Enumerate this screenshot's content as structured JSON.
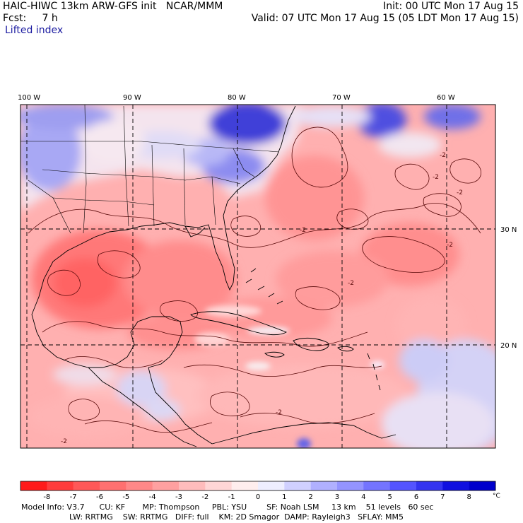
{
  "header": {
    "line1_left": "HAIC-HIWC 13km ARW-GFS init   NCAR/MMM",
    "line1_right": "Init: 00 UTC Mon 17 Aug 15",
    "line2_left": "Fcst:     7 h",
    "line2_right": "Valid: 07 UTC Mon 17 Aug 15 (05 LDT Mon 17 Aug 15)",
    "field": "Lifted index"
  },
  "map": {
    "lon_labels": [
      "100 W",
      "90 W",
      "80 W",
      "70 W",
      "60 W"
    ],
    "lat_labels": [
      "30 N",
      "20 N"
    ],
    "contour_label": "-2"
  },
  "colorbar": {
    "levels": [
      "-8",
      "-7",
      "-6",
      "-5",
      "-4",
      "-3",
      "-2",
      "-1",
      "0",
      "1",
      "2",
      "3",
      "4",
      "5",
      "6",
      "7",
      "8"
    ],
    "unit": "°C",
    "colors": [
      "#ff1a1a",
      "#ff3c3c",
      "#ff5858",
      "#ff7070",
      "#ff8888",
      "#ffa0a0",
      "#ffbcbc",
      "#ffd6d6",
      "#ffeeee",
      "#eeeeff",
      "#d0d0ff",
      "#b0b0ff",
      "#9494ff",
      "#7474ff",
      "#5454ff",
      "#3434f0",
      "#1010e0",
      "#0000cc"
    ]
  },
  "footer": {
    "line1": "Model Info: V3.7      CU: KF       MP: Thompson     PBL: YSU        SF: Noah LSM     13 km    51 levels   60 sec",
    "line2": "LW: RRTMG    SW: RRTMG   DIFF: full    KM: 2D Smagor  DAMP: Rayleigh3   SFLAY: MM5"
  }
}
